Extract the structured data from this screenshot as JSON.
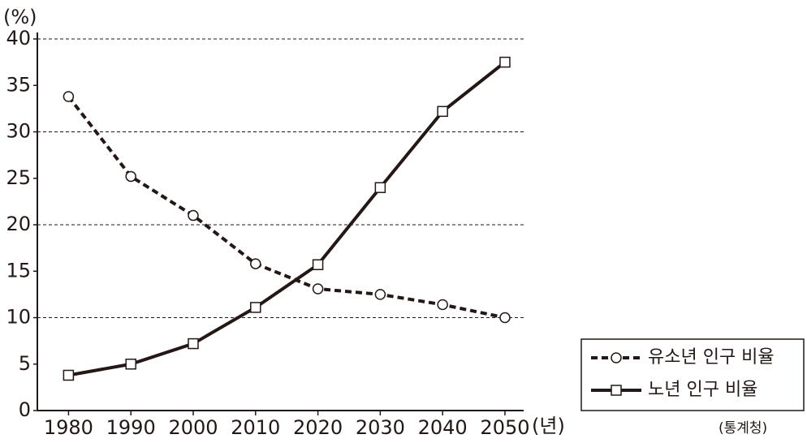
{
  "chart_data": {
    "type": "line",
    "y_unit_label": "(%)",
    "x_unit_label": "(년)",
    "source": "(통계청)",
    "x": [
      1980,
      1990,
      2000,
      2010,
      2020,
      2030,
      2040,
      2050
    ],
    "xlim": [
      1975,
      2053
    ],
    "xticks": [
      1980,
      1990,
      2000,
      2010,
      2020,
      2030,
      2040,
      2050
    ],
    "ylim": [
      0,
      40
    ],
    "yticks": [
      0,
      5,
      10,
      15,
      20,
      25,
      30,
      35,
      40
    ],
    "gridlines": [
      10,
      20,
      30,
      40
    ],
    "legend": "lower-right",
    "series": [
      {
        "name": "유소년 인구 비율",
        "color": "#231815",
        "dash": true,
        "marker": "circle",
        "values": [
          33.8,
          25.2,
          21.0,
          15.8,
          13.1,
          12.5,
          11.4,
          10.0
        ]
      },
      {
        "name": "노년 인구 비율",
        "color": "#231815",
        "dash": false,
        "marker": "square",
        "values": [
          3.8,
          5.0,
          7.2,
          11.1,
          15.7,
          24.0,
          32.2,
          37.5
        ]
      }
    ]
  }
}
